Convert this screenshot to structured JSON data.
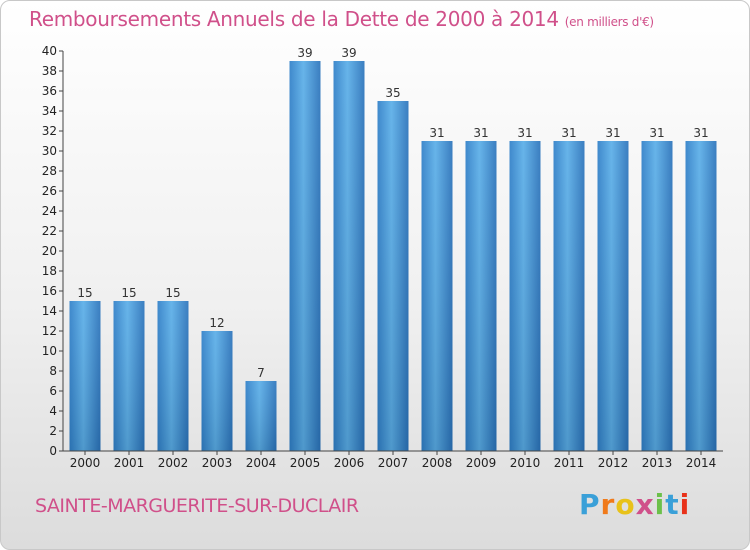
{
  "header": {
    "title": "Remboursements Annuels de la Dette de 2000 à 2014",
    "unit": "(en milliers d'€)"
  },
  "footer": {
    "town": "SAINTE-MARGUERITE-SUR-DUCLAIR",
    "logo_text": "Proxiti",
    "logo_colors": [
      "#3aa0d8",
      "#f07a1a",
      "#e8c21a",
      "#d0508a",
      "#6cc04a",
      "#3aa0d8",
      "#e8321a"
    ]
  },
  "chart_data": {
    "type": "bar",
    "title": "Remboursements Annuels de la Dette de 2000 à 2014",
    "categories": [
      "2000",
      "2001",
      "2002",
      "2003",
      "2004",
      "2005",
      "2006",
      "2007",
      "2008",
      "2009",
      "2010",
      "2011",
      "2012",
      "2013",
      "2014"
    ],
    "values": [
      15,
      15,
      15,
      12,
      7,
      39,
      39,
      35,
      31,
      31,
      31,
      31,
      31,
      31,
      31
    ],
    "ylim": [
      0,
      40
    ],
    "yticks": [
      0,
      2,
      4,
      6,
      8,
      10,
      12,
      14,
      16,
      18,
      20,
      22,
      24,
      26,
      28,
      30,
      32,
      34,
      36,
      38,
      40
    ],
    "grid": false,
    "bar_color": "#3d8fd6"
  }
}
